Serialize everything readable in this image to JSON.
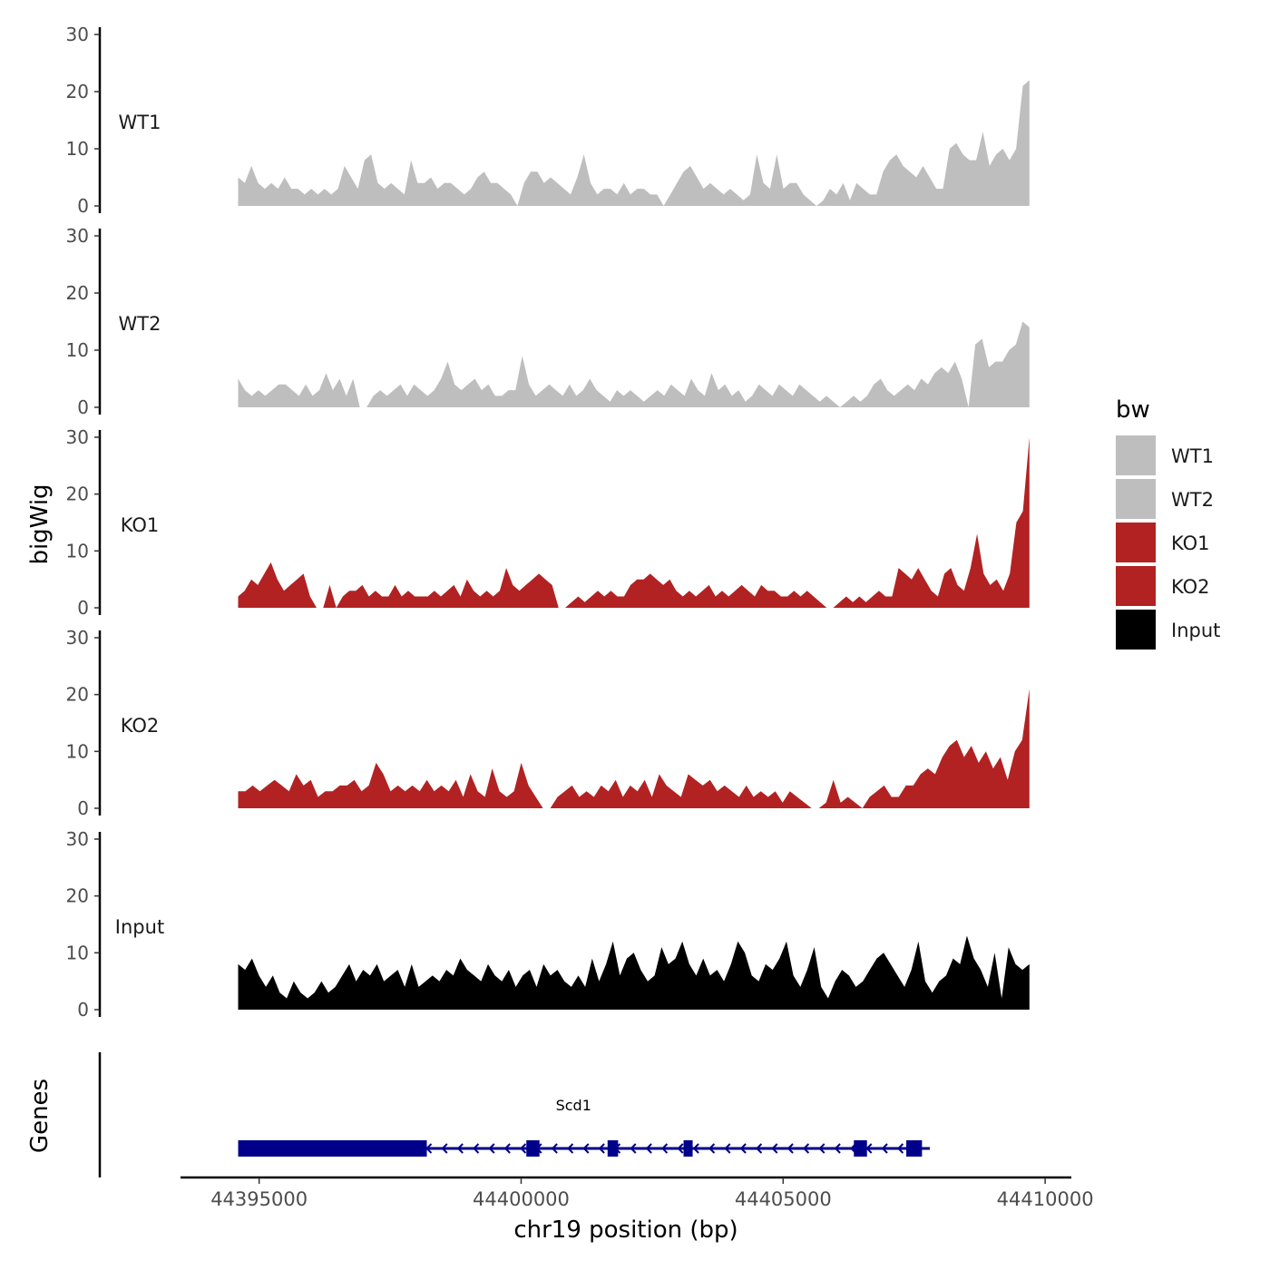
{
  "chart_data": {
    "type": "area",
    "title": "",
    "xlabel": "chr19 position (bp)",
    "ylabel": "bigWig",
    "xlim": [
      44393500,
      44410500
    ],
    "ylim": [
      0,
      30
    ],
    "x_range": [
      44394600,
      44409700
    ],
    "x_ticks": [
      44395000,
      44400000,
      44405000,
      44410000
    ],
    "x_tick_labels": [
      "44395000",
      "44400000",
      "44405000",
      "44410000"
    ],
    "y_ticks": [
      0,
      10,
      20,
      30
    ],
    "y_tick_labels": [
      "0",
      "10",
      "20",
      "30"
    ],
    "legend": {
      "title": "bw",
      "position": "right",
      "entries": [
        {
          "label": "WT1",
          "color": "#bebebe"
        },
        {
          "label": "WT2",
          "color": "#bebebe"
        },
        {
          "label": "KO1",
          "color": "#b22222"
        },
        {
          "label": "KO2",
          "color": "#b22222"
        },
        {
          "label": "Input",
          "color": "#000000"
        }
      ]
    },
    "series": [
      {
        "name": "WT1",
        "color": "#bebebe",
        "values": [
          5,
          4,
          7,
          4,
          3,
          4,
          3,
          5,
          3,
          3,
          2,
          3,
          2,
          3,
          2,
          3,
          7,
          5,
          3,
          8,
          9,
          4,
          3,
          4,
          3,
          2,
          8,
          4,
          4,
          5,
          3,
          4,
          4,
          3,
          2,
          3,
          5,
          6,
          4,
          4,
          3,
          2,
          0,
          4,
          6,
          6,
          4,
          5,
          4,
          3,
          2,
          5,
          9,
          4,
          2,
          3,
          3,
          2,
          4,
          2,
          3,
          3,
          2,
          2,
          0,
          2,
          4,
          6,
          7,
          5,
          3,
          4,
          3,
          2,
          3,
          2,
          1,
          2,
          9,
          4,
          3,
          9,
          3,
          4,
          4,
          2,
          1,
          0,
          1,
          3,
          2,
          4,
          1,
          4,
          3,
          2,
          2,
          6,
          8,
          9,
          7,
          6,
          5,
          7,
          5,
          3,
          3,
          10,
          11,
          9,
          8,
          8,
          13,
          7,
          9,
          10,
          8,
          10,
          21,
          22
        ]
      },
      {
        "name": "WT2",
        "color": "#bebebe",
        "values": [
          5,
          3,
          2,
          3,
          2,
          3,
          4,
          4,
          3,
          2,
          4,
          2,
          3,
          6,
          3,
          5,
          2,
          5,
          0,
          0,
          2,
          3,
          2,
          3,
          4,
          2,
          4,
          3,
          2,
          3,
          5,
          8,
          4,
          3,
          4,
          5,
          3,
          4,
          2,
          2,
          3,
          3,
          9,
          4,
          2,
          3,
          4,
          3,
          2,
          4,
          2,
          3,
          5,
          3,
          2,
          1,
          3,
          2,
          3,
          2,
          1,
          2,
          3,
          2,
          4,
          3,
          2,
          5,
          3,
          2,
          6,
          3,
          4,
          2,
          3,
          1,
          2,
          4,
          3,
          2,
          4,
          3,
          2,
          4,
          3,
          2,
          1,
          2,
          1,
          0,
          1,
          2,
          1,
          2,
          4,
          5,
          3,
          2,
          3,
          4,
          3,
          5,
          4,
          6,
          7,
          6,
          8,
          5,
          0,
          11,
          12,
          7,
          8,
          8,
          10,
          11,
          15,
          14
        ]
      },
      {
        "name": "KO1",
        "color": "#b22222",
        "values": [
          2,
          3,
          5,
          4,
          6,
          8,
          5,
          3,
          4,
          5,
          6,
          2,
          0,
          0,
          4,
          0,
          2,
          3,
          3,
          4,
          2,
          3,
          2,
          2,
          4,
          2,
          3,
          2,
          2,
          2,
          3,
          2,
          3,
          4,
          2,
          5,
          3,
          2,
          3,
          2,
          3,
          7,
          4,
          3,
          4,
          5,
          6,
          5,
          4,
          0,
          0,
          1,
          2,
          1,
          2,
          3,
          2,
          3,
          2,
          2,
          4,
          5,
          5,
          6,
          5,
          4,
          5,
          3,
          2,
          3,
          2,
          3,
          4,
          2,
          3,
          2,
          3,
          4,
          3,
          2,
          4,
          3,
          3,
          2,
          2,
          3,
          2,
          3,
          2,
          1,
          0,
          0,
          1,
          2,
          1,
          2,
          1,
          2,
          3,
          2,
          2,
          7,
          6,
          5,
          7,
          5,
          3,
          2,
          6,
          7,
          4,
          3,
          7,
          13,
          6,
          4,
          5,
          3,
          6,
          15,
          17,
          30
        ]
      },
      {
        "name": "KO2",
        "color": "#b22222",
        "values": [
          3,
          3,
          4,
          3,
          4,
          5,
          4,
          3,
          6,
          4,
          5,
          2,
          3,
          3,
          4,
          4,
          5,
          3,
          4,
          8,
          6,
          3,
          4,
          3,
          4,
          3,
          5,
          3,
          4,
          3,
          5,
          2,
          6,
          3,
          2,
          7,
          3,
          2,
          3,
          8,
          4,
          2,
          0,
          0,
          2,
          3,
          4,
          2,
          3,
          2,
          4,
          3,
          5,
          2,
          4,
          3,
          5,
          2,
          6,
          4,
          3,
          2,
          6,
          5,
          4,
          5,
          3,
          4,
          3,
          2,
          4,
          2,
          3,
          2,
          3,
          1,
          3,
          2,
          1,
          0,
          0,
          1,
          5,
          1,
          2,
          1,
          0,
          2,
          3,
          4,
          2,
          2,
          4,
          4,
          6,
          7,
          6,
          9,
          11,
          12,
          9,
          11,
          8,
          10,
          7,
          9,
          5,
          10,
          12,
          21
        ]
      },
      {
        "name": "Input",
        "color": "#000000",
        "values": [
          8,
          7,
          9,
          6,
          4,
          6,
          3,
          2,
          5,
          3,
          2,
          3,
          5,
          3,
          4,
          6,
          8,
          5,
          7,
          6,
          8,
          5,
          6,
          7,
          4,
          8,
          4,
          5,
          6,
          5,
          7,
          6,
          9,
          7,
          6,
          5,
          8,
          6,
          5,
          7,
          4,
          6,
          7,
          4,
          8,
          6,
          7,
          5,
          4,
          6,
          4,
          9,
          5,
          8,
          12,
          6,
          9,
          10,
          7,
          5,
          6,
          11,
          8,
          9,
          12,
          8,
          6,
          9,
          6,
          7,
          5,
          8,
          12,
          10,
          6,
          5,
          8,
          7,
          9,
          12,
          6,
          4,
          7,
          11,
          4,
          2,
          5,
          7,
          6,
          4,
          5,
          7,
          9,
          10,
          8,
          6,
          4,
          7,
          12,
          5,
          3,
          5,
          6,
          9,
          8,
          13,
          9,
          7,
          4,
          10,
          2,
          11,
          8,
          7,
          8
        ]
      }
    ],
    "gene_track": {
      "label": "Genes",
      "gene_name": "Scd1",
      "color": "#00008b",
      "strand": "-",
      "start": 44394600,
      "end": 44407800,
      "exons": [
        [
          44394600,
          44398200
        ],
        [
          44400100,
          44400350
        ],
        [
          44401650,
          44401850
        ],
        [
          44403100,
          44403250
        ],
        [
          44406350,
          44406600
        ],
        [
          44407350,
          44407650
        ]
      ]
    }
  }
}
